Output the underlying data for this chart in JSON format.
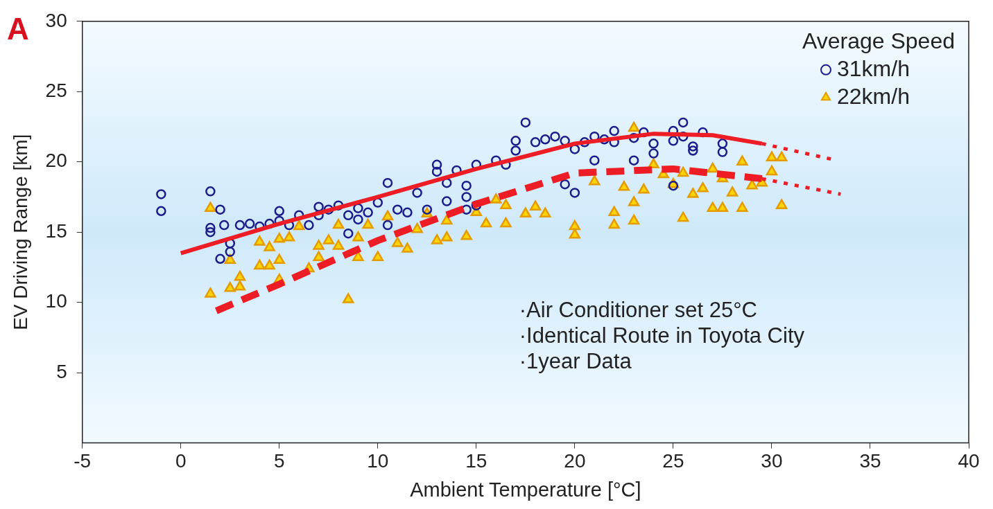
{
  "chart_data": {
    "type": "scatter",
    "title": "A",
    "xlabel": "Ambient Temperature [°C]",
    "ylabel": "EV Driving Range [km]",
    "legend_title": "Average Speed",
    "legend": "top right",
    "grid": false,
    "xlim": [
      -5,
      40
    ],
    "xticks": [
      -5,
      0,
      5,
      10,
      15,
      20,
      25,
      30,
      35,
      40
    ],
    "ylim": [
      0,
      30
    ],
    "yticks": [
      5,
      10,
      15,
      20,
      25,
      30
    ],
    "annotations": [
      "·Air Conditioner set 25°C",
      "·Identical Route in Toyota City",
      "·1year Data"
    ],
    "series": [
      {
        "name": "31km/h",
        "marker": "circle",
        "color": "#1c1c8c",
        "x": [
          -1,
          -1,
          1.5,
          1.5,
          1.5,
          2,
          2.2,
          2.5,
          2.5,
          2,
          3,
          3.5,
          4,
          4.5,
          5,
          5,
          5.5,
          6,
          6.5,
          7,
          7,
          7.5,
          8,
          8.5,
          8.5,
          9,
          9,
          9.5,
          10,
          10.5,
          10.5,
          11,
          11.5,
          12,
          12.5,
          13,
          13,
          13.5,
          13.5,
          14,
          14.5,
          14.5,
          14.5,
          15,
          15,
          16,
          16.5,
          17,
          17,
          17.5,
          18,
          18.5,
          19,
          19.5,
          19.5,
          20,
          20,
          20.5,
          21,
          21,
          21.5,
          22,
          22,
          23,
          23,
          23.5,
          24,
          24,
          25,
          25,
          25,
          25.5,
          25.5,
          26,
          26,
          26.5,
          27.5,
          27.5
        ],
        "values": [
          17.7,
          16.5,
          17.9,
          15.3,
          15,
          16.6,
          15.5,
          14.2,
          13.6,
          13.1,
          15.5,
          15.6,
          15.4,
          15.6,
          16.5,
          15.8,
          15.5,
          16.2,
          15.5,
          16.8,
          16.2,
          16.6,
          16.9,
          16.2,
          14.9,
          16.7,
          15.9,
          16.4,
          17.1,
          18.5,
          15.5,
          16.6,
          16.4,
          17.8,
          16.6,
          19.8,
          19.3,
          18.5,
          17.2,
          19.4,
          18.3,
          17.5,
          16.6,
          19.8,
          16.9,
          20.1,
          19.8,
          21.5,
          20.8,
          22.8,
          21.4,
          21.6,
          21.8,
          21.5,
          18.4,
          20.9,
          17.8,
          21.4,
          21.8,
          20.1,
          21.6,
          21.4,
          22.2,
          21.7,
          20.1,
          22.1,
          21.3,
          20.6,
          22.2,
          21.5,
          18.3,
          22.8,
          21.8,
          21.1,
          20.8,
          22.1,
          21.3,
          20.7
        ]
      },
      {
        "name": "22km/h",
        "marker": "triangle",
        "color": "#ffd400",
        "x": [
          1.5,
          1.5,
          2.5,
          2.5,
          3,
          3,
          4,
          4,
          4.5,
          4.5,
          5,
          5,
          5,
          5.5,
          6,
          6.5,
          7,
          7,
          7.5,
          8,
          8,
          8.5,
          9,
          9,
          9.5,
          10,
          10.5,
          11,
          11.5,
          12,
          12.5,
          13,
          13.5,
          13.5,
          14.5,
          15,
          15.5,
          16,
          16.5,
          16.5,
          17.5,
          18,
          18.5,
          20,
          20,
          21,
          22,
          22,
          22.5,
          23,
          23,
          23,
          23.5,
          24,
          24.5,
          25,
          25.5,
          25.5,
          26,
          26.5,
          27,
          27,
          27.5,
          27.5,
          28,
          28.5,
          28.5,
          29,
          29.5,
          30,
          30,
          30.5,
          30.5
        ],
        "values": [
          16.7,
          10.6,
          13,
          11,
          11.8,
          11.1,
          14.3,
          12.6,
          13.9,
          12.6,
          14.5,
          13,
          11.6,
          14.6,
          15.4,
          12.4,
          14,
          13.2,
          14.4,
          14,
          15.5,
          10.2,
          13.2,
          14.6,
          15.5,
          13.2,
          16.1,
          14.2,
          13.8,
          15.2,
          16.3,
          14.4,
          14.6,
          15.8,
          14.7,
          16.4,
          15.6,
          17.3,
          16.9,
          15.6,
          16.3,
          16.8,
          16.3,
          15.4,
          14.8,
          18.6,
          15.5,
          16.4,
          18.2,
          15.8,
          17.1,
          22.4,
          18,
          19.8,
          19.1,
          18.4,
          16,
          19.2,
          17.7,
          18.1,
          19.5,
          16.7,
          16.7,
          18.8,
          17.8,
          20,
          16.7,
          18.3,
          18.5,
          20.3,
          19.3,
          20.3,
          16.9
        ]
      },
      {
        "type": "line",
        "marker": "none",
        "line_style": "solid",
        "color": "#ee1c24",
        "x": [
          0,
          5,
          10,
          15,
          20,
          24,
          27,
          29.5
        ],
        "values": [
          13.5,
          15.6,
          17.5,
          19.5,
          21.3,
          22,
          21.9,
          21.3
        ]
      },
      {
        "type": "line",
        "marker": "none",
        "line_style": "dotted",
        "color": "#ee1c24",
        "x": [
          29.5,
          33
        ],
        "values": [
          21.3,
          20.2
        ]
      },
      {
        "type": "line",
        "marker": "none",
        "line_style": "dashed",
        "color": "#ee1c24",
        "x": [
          1.8,
          5,
          10,
          15,
          20,
          25,
          29.5
        ],
        "values": [
          9.4,
          11.3,
          14.4,
          17,
          19.2,
          19.5,
          18.8
        ]
      },
      {
        "type": "line",
        "marker": "none",
        "line_style": "dotted",
        "color": "#ee1c24",
        "x": [
          29.5,
          33.5
        ],
        "values": [
          18.8,
          17.7
        ]
      }
    ]
  }
}
